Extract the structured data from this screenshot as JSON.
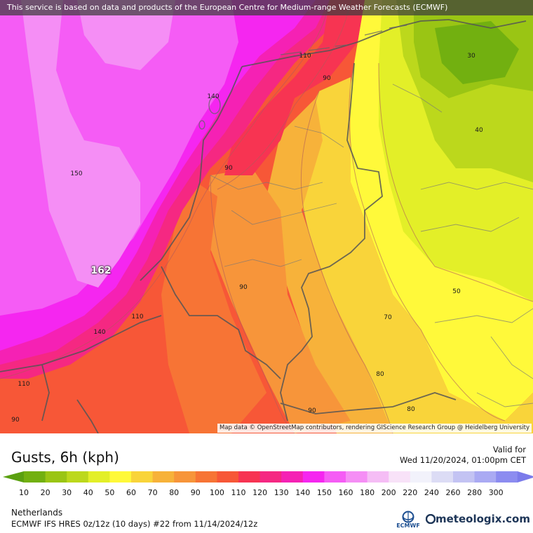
{
  "banner": "This service is based on data and products of the European Centre for Medium-range Weather Forecasts (ECMWF)",
  "credits": "Map data © OpenStreetMap contributors, rendering GIScience Research Group @ Heidelberg University",
  "contour_labels": [
    "110",
    "90",
    "30",
    "140",
    "40",
    "150",
    "90",
    "162",
    "90",
    "50",
    "110",
    "70",
    "140",
    "80",
    "110",
    "90",
    "80",
    "90"
  ],
  "title": "Gusts, 6h (kph)",
  "valid_label": "Valid for",
  "valid_time": "Wed 11/20/2024, 01:00pm CET",
  "legend": {
    "labels": [
      "10",
      "20",
      "30",
      "40",
      "50",
      "60",
      "70",
      "80",
      "90",
      "100",
      "110",
      "120",
      "130",
      "140",
      "150",
      "160",
      "180",
      "200",
      "220",
      "240",
      "260",
      "280",
      "300"
    ],
    "colors": [
      "#5aa010",
      "#72b010",
      "#9ac514",
      "#bcd81c",
      "#e3ef28",
      "#fff93a",
      "#f9d43a",
      "#f7b23a",
      "#f7953a",
      "#f77435",
      "#f75737",
      "#f73452",
      "#f52882",
      "#f521b4",
      "#f526f0",
      "#f55cf5",
      "#f58ef5",
      "#f5bdf5",
      "#f8e2f8",
      "#f2f2fb",
      "#dcdcf5",
      "#c3c3f3",
      "#aaaaf3",
      "#8c8cf0",
      "#7b7bea"
    ]
  },
  "region": "Netherlands",
  "model_line": "ECMWF IFS HRES 0z/12z (10 days) #22 from  11/14/2024/12z",
  "ecmwf_logo": "ECMWF",
  "brand": "meteologix.com"
}
